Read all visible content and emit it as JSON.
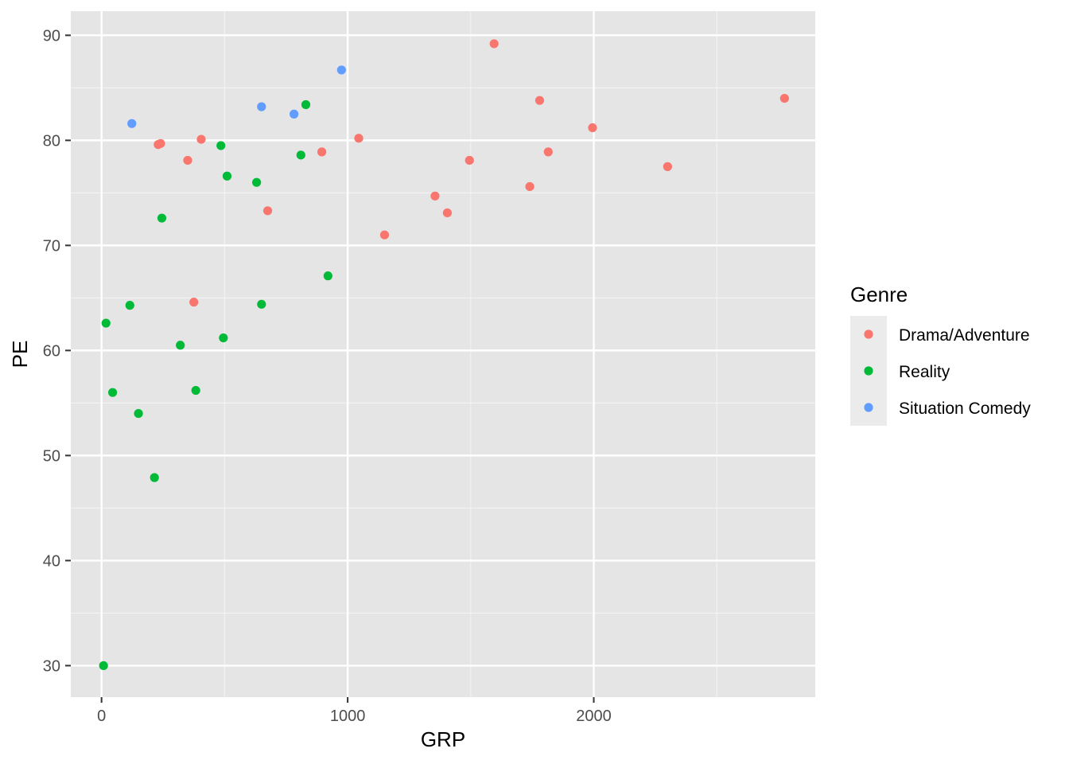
{
  "chart_data": {
    "type": "scatter",
    "xlabel": "GRP",
    "ylabel": "PE",
    "xlim": [
      -125,
      2900
    ],
    "ylim": [
      27,
      92.3
    ],
    "x_ticks": [
      0,
      1000,
      2000
    ],
    "x_tick_labels": [
      "0",
      "1000",
      "2000"
    ],
    "x_minor_ticks": [
      -500,
      500,
      1500,
      2500
    ],
    "y_ticks": [
      30,
      40,
      50,
      60,
      70,
      80,
      90
    ],
    "y_tick_labels": [
      "30",
      "40",
      "50",
      "60",
      "70",
      "80",
      "90"
    ],
    "y_minor_ticks": [
      35,
      45,
      55,
      65,
      75,
      85
    ],
    "grid": true,
    "panel_background": "#e5e5e5",
    "legend": {
      "title": "Genre",
      "placement": "right",
      "background": "#ebebeb"
    },
    "series": [
      {
        "name": "Drama/Adventure",
        "color": "#f8766d",
        "points": [
          [
            230,
            79.6
          ],
          [
            240,
            79.7
          ],
          [
            350,
            78.1
          ],
          [
            375,
            64.6
          ],
          [
            405,
            80.1
          ],
          [
            675,
            73.3
          ],
          [
            895,
            78.9
          ],
          [
            1045,
            80.2
          ],
          [
            1150,
            71.0
          ],
          [
            1355,
            74.7
          ],
          [
            1405,
            73.1
          ],
          [
            1495,
            78.1
          ],
          [
            1595,
            89.2
          ],
          [
            1740,
            75.6
          ],
          [
            1780,
            83.8
          ],
          [
            1815,
            78.9
          ],
          [
            1995,
            81.2
          ],
          [
            2300,
            77.5
          ],
          [
            2775,
            84.0
          ]
        ]
      },
      {
        "name": "Reality",
        "color": "#00ba38",
        "points": [
          [
            8,
            30.0
          ],
          [
            18,
            62.6
          ],
          [
            45,
            56.0
          ],
          [
            115,
            64.3
          ],
          [
            150,
            54.0
          ],
          [
            215,
            47.9
          ],
          [
            245,
            72.6
          ],
          [
            320,
            60.5
          ],
          [
            383,
            56.2
          ],
          [
            485,
            79.5
          ],
          [
            495,
            61.2
          ],
          [
            510,
            76.6
          ],
          [
            630,
            76.0
          ],
          [
            650,
            64.4
          ],
          [
            810,
            78.6
          ],
          [
            830,
            83.4
          ],
          [
            920,
            67.1
          ]
        ]
      },
      {
        "name": "Situation Comedy",
        "color": "#619cff",
        "points": [
          [
            123,
            81.6
          ],
          [
            650,
            83.2
          ],
          [
            782,
            82.5
          ],
          [
            975,
            86.7
          ]
        ]
      }
    ]
  }
}
